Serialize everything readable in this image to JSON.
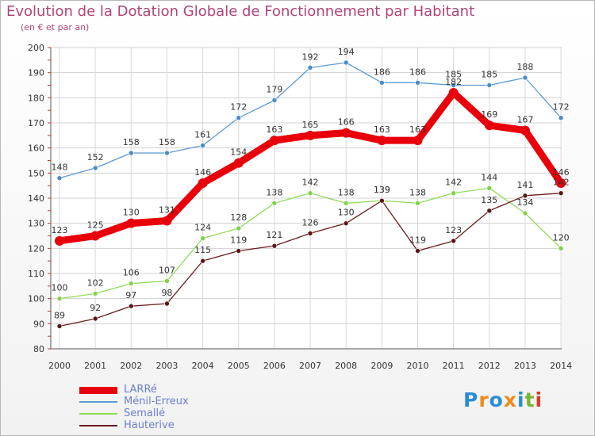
{
  "chart_data": {
    "type": "line",
    "title": "Evolution de la Dotation Globale de Fonctionnement par Habitant",
    "subtitle": "(en € et par an)",
    "x": [
      "2000",
      "2001",
      "2002",
      "2003",
      "2004",
      "2005",
      "2006",
      "2007",
      "2008",
      "2009",
      "2010",
      "2011",
      "2012",
      "2013",
      "2014"
    ],
    "yticks": [
      "80",
      "90",
      "100",
      "110",
      "120",
      "130",
      "140",
      "150",
      "160",
      "170",
      "180",
      "190",
      "200"
    ],
    "ylim": [
      80,
      200
    ],
    "grid": true,
    "legend_position": "bottom-left",
    "series": [
      {
        "name": "LARRé",
        "color": "#e8000b",
        "values": [
          123,
          125,
          130,
          131,
          146,
          154,
          163,
          165,
          166,
          163,
          163,
          182,
          169,
          167,
          146
        ],
        "labels": [
          "123",
          "125",
          "130",
          "131",
          "146",
          "154",
          "163",
          "165",
          "166",
          "163",
          "163",
          "182",
          "169",
          "167",
          "146"
        ]
      },
      {
        "name": "Ménil-Erreux",
        "color": "#5b9bd5",
        "values": [
          148,
          152,
          158,
          158,
          161,
          172,
          179,
          192,
          194,
          186,
          186,
          185,
          185,
          188,
          172
        ],
        "labels": [
          "148",
          "152",
          "158",
          "158",
          "161",
          "172",
          "179",
          "192",
          "194",
          "186",
          "186",
          "185",
          "185",
          "188",
          "172"
        ]
      },
      {
        "name": "Semallé",
        "color": "#8fdc5a",
        "values": [
          100,
          102,
          106,
          107,
          124,
          128,
          138,
          142,
          138,
          139,
          138,
          142,
          144,
          134,
          120
        ],
        "labels": [
          "100",
          "102",
          "106",
          "107",
          "124",
          "128",
          "138",
          "142",
          "138",
          "139",
          "138",
          "142",
          "144",
          "134",
          "120"
        ]
      },
      {
        "name": "Hauterive",
        "color": "#6b1c1c",
        "values": [
          89,
          92,
          97,
          98,
          115,
          119,
          121,
          126,
          130,
          139,
          119,
          123,
          135,
          141,
          142
        ],
        "labels": [
          "89",
          "92",
          "97",
          "98",
          "115",
          "119",
          "121",
          "126",
          "130",
          "139",
          "119",
          "123",
          "135",
          "141",
          "142"
        ]
      }
    ]
  },
  "brand": {
    "text": "Proxiti",
    "letters": [
      "P",
      "r",
      "o",
      "x",
      "i",
      "t",
      "i"
    ],
    "colors": [
      "#2a8dd4",
      "#f08a1c",
      "#2a8dd4",
      "#f08a1c",
      "#2a8dd4",
      "#7ab632",
      "#d93a2b"
    ]
  }
}
